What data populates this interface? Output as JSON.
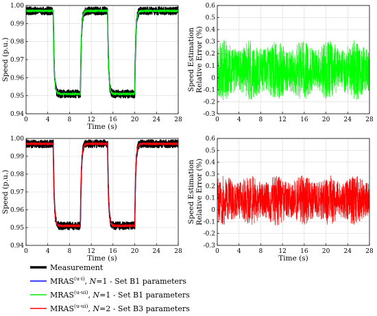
{
  "chart_data": [
    {
      "type": "line",
      "panel": "top-left",
      "xlabel": "Time (s)",
      "ylabel": "Speed (p.u.)",
      "xlim": [
        0,
        28
      ],
      "ylim": [
        0.94,
        1.0
      ],
      "xticks": [
        0,
        4,
        8,
        12,
        16,
        20,
        24,
        28
      ],
      "yticks": [
        0.94,
        0.95,
        0.96,
        0.97,
        0.98,
        0.99,
        1.0
      ],
      "ytick_labels": [
        "0.94",
        "0.95",
        "0.96",
        "0.97",
        "0.98",
        "0.99",
        "1.00"
      ],
      "grid": true,
      "profile": {
        "high": 0.997,
        "low": 0.951,
        "steps": [
          {
            "t": 5,
            "to": "low"
          },
          {
            "t": 10,
            "to": "high"
          },
          {
            "t": 15,
            "to": "low"
          },
          {
            "t": 20,
            "to": "high"
          }
        ]
      },
      "series": [
        {
          "name": "Measurement",
          "color": "#000000",
          "noise": 0.0022
        },
        {
          "name": "MRAS(u-i), N=1 - Set B1 parameters",
          "color": "#0000ff",
          "noise": 0.0004
        },
        {
          "name": "MRAS(u-ui), N=1 - Set B1 parameters",
          "color": "#00ee00",
          "noise": 0.0006
        }
      ]
    },
    {
      "type": "line",
      "panel": "top-right",
      "xlabel": "",
      "ylabel": [
        "Speed Estimation",
        "Relative Error (%)"
      ],
      "xlim": [
        0,
        28
      ],
      "ylim": [
        -0.3,
        0.6
      ],
      "xticks": [
        0,
        4,
        8,
        12,
        16,
        20,
        24,
        28
      ],
      "yticks": [
        -0.3,
        -0.2,
        -0.1,
        0,
        0.1,
        0.2,
        0.3,
        0.4,
        0.5,
        0.6
      ],
      "ytick_labels": [
        "-0.3",
        "-0.2",
        "-0.1",
        "0",
        "0.1",
        "0.2",
        "0.3",
        "0.4",
        "0.5",
        "0.6"
      ],
      "grid": true,
      "series": [
        {
          "name": "MRAS(u-ui), N=1 - Set B1 parameters",
          "color": "#00ff00",
          "mean": 0.06,
          "amplitude": 0.25
        }
      ]
    },
    {
      "type": "line",
      "panel": "bottom-left",
      "xlabel": "Time (s)",
      "ylabel": "Speed (p.u.)",
      "xlim": [
        0,
        28
      ],
      "ylim": [
        0.94,
        1.0
      ],
      "xticks": [
        0,
        4,
        8,
        12,
        16,
        20,
        24,
        28
      ],
      "yticks": [
        0.94,
        0.95,
        0.96,
        0.97,
        0.98,
        0.99,
        1.0
      ],
      "ytick_labels": [
        "0.94",
        "0.95",
        "0.96",
        "0.97",
        "0.98",
        "0.99",
        "1.00"
      ],
      "grid": true,
      "profile": {
        "high": 0.997,
        "low": 0.951,
        "steps": [
          {
            "t": 5,
            "to": "low"
          },
          {
            "t": 10,
            "to": "high"
          },
          {
            "t": 15,
            "to": "low"
          },
          {
            "t": 20,
            "to": "high"
          }
        ]
      },
      "series": [
        {
          "name": "Measurement",
          "color": "#000000",
          "noise": 0.0022
        },
        {
          "name": "MRAS(u-i), N=1 - Set B1 parameters",
          "color": "#0000ff",
          "noise": 0.0004
        },
        {
          "name": "MRAS(u-ui), N=2 - Set B3 parameters",
          "color": "#ff0000",
          "noise": 0.0006
        }
      ]
    },
    {
      "type": "line",
      "panel": "bottom-right",
      "xlabel": "Time (s)",
      "ylabel": [
        "Speed Estimation",
        "Relative Error (%)"
      ],
      "xlim": [
        0,
        28
      ],
      "ylim": [
        -0.3,
        0.6
      ],
      "xticks": [
        0,
        4,
        8,
        12,
        16,
        20,
        24,
        28
      ],
      "yticks": [
        -0.3,
        -0.2,
        -0.1,
        0,
        0.1,
        0.2,
        0.3,
        0.4,
        0.5,
        0.6
      ],
      "ytick_labels": [
        "-0.3",
        "-0.2",
        "-0.1",
        "0",
        "0.1",
        "0.2",
        "0.3",
        "0.4",
        "0.5",
        "0.6"
      ],
      "grid": true,
      "series": [
        {
          "name": "MRAS(u-ui), N=2 - Set B3 parameters",
          "color": "#ff0000",
          "mean": 0.08,
          "amplitude": 0.21
        }
      ]
    }
  ],
  "legend": {
    "placement": "bottom-left",
    "items": [
      {
        "color": "#000000",
        "base": "Measurement",
        "sup": "",
        "model": "",
        "params": ""
      },
      {
        "color": "#0000ff",
        "base": "MRAS",
        "sup": "(u-i)",
        "model": "N",
        "params": "=1 - Set B1 parameters"
      },
      {
        "color": "#00ee00",
        "base": "MRAS",
        "sup": "(u-ui)",
        "model": "N",
        "params": "=1 - Set B1 parameters"
      },
      {
        "color": "#ff0000",
        "base": "MRAS",
        "sup": "(u-ui)",
        "model": "N",
        "params": "=2 - Set B3 parameters"
      }
    ]
  }
}
